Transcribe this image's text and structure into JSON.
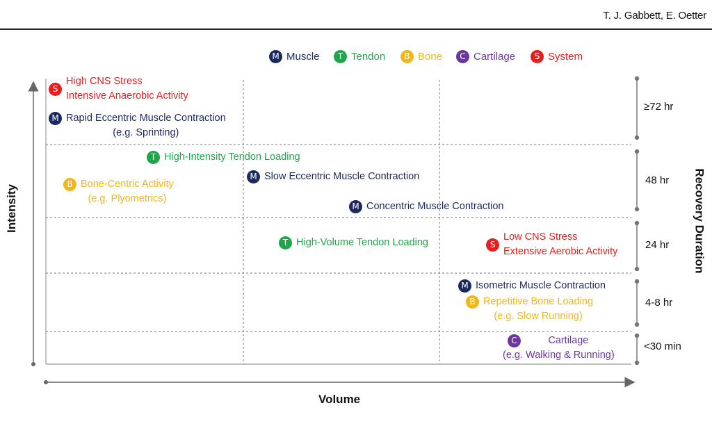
{
  "header": {
    "authors": "T. J. Gabbett, E. Oetter"
  },
  "legend": [
    {
      "letter": "M",
      "label": "Muscle",
      "color": "#1b2a5e"
    },
    {
      "letter": "T",
      "label": "Tendon",
      "color": "#1fa64a"
    },
    {
      "letter": "B",
      "label": "Bone",
      "color": "#f2b619"
    },
    {
      "letter": "C",
      "label": "Cartilage",
      "color": "#6c36a0"
    },
    {
      "letter": "S",
      "label": "System",
      "color": "#e61e1e"
    }
  ],
  "axes": {
    "y_label": "Intensity",
    "x_label": "Volume",
    "right_label": "Recovery Duration"
  },
  "durations": [
    ">=72 hr",
    "48 hr",
    "24 hr",
    "4-8 hr",
    "<30 min"
  ],
  "items": {
    "s_high": {
      "letter": "S",
      "line1": "High CNS Stress",
      "line2": "Intensive Anaerobic Activity"
    },
    "m_rapid": {
      "letter": "M",
      "line1": "Rapid Eccentric Muscle Contraction",
      "line2": "(e.g. Sprinting)"
    },
    "t_hi_int": {
      "letter": "T",
      "line1": "High-Intensity Tendon Loading"
    },
    "b_centric": {
      "letter": "B",
      "line1": "Bone-Centric Activity",
      "line2": "(e.g. Plyometrics)"
    },
    "m_slow": {
      "letter": "M",
      "line1": "Slow Eccentric Muscle Contraction"
    },
    "m_conc": {
      "letter": "M",
      "line1": "Concentric Muscle Contraction"
    },
    "t_hi_vol": {
      "letter": "T",
      "line1": "High-Volume Tendon Loading"
    },
    "s_low": {
      "letter": "S",
      "line1": "Low CNS Stress",
      "line2": "Extensive Aerobic Activity"
    },
    "m_iso": {
      "letter": "M",
      "line1": "Isometric Muscle Contraction"
    },
    "b_rep": {
      "letter": "B",
      "line1": "Repetitive Bone Loading",
      "line2": "(e.g. Slow Running)"
    },
    "c_cart": {
      "letter": "C",
      "line1": "Cartilage",
      "line2": "(e.g. Walking & Running)"
    }
  }
}
